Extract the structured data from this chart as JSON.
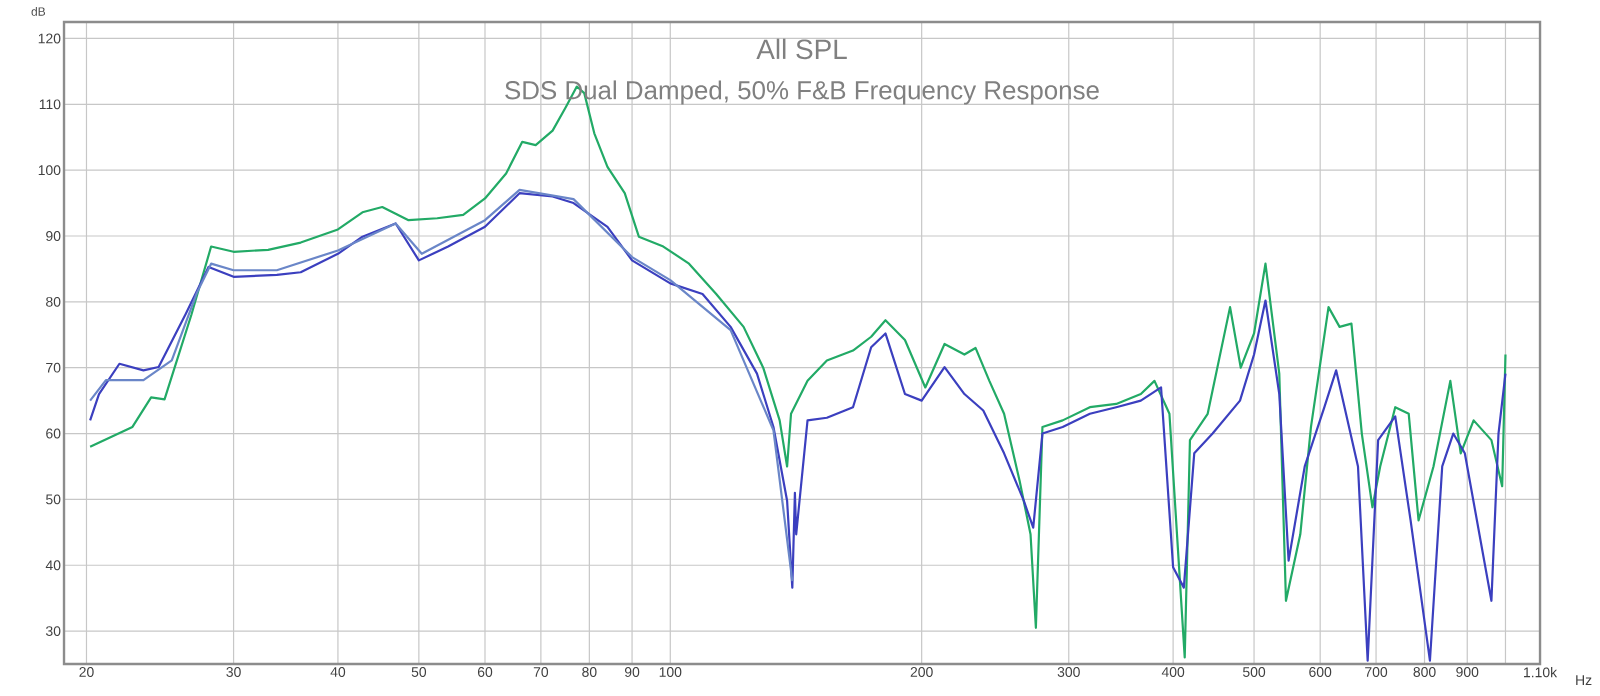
{
  "chart_data": {
    "type": "line",
    "title": "All SPL",
    "subtitle": "SDS Dual Damped, 50% F&B Frequency Response",
    "xlabel": "Hz",
    "ylabel": "dB",
    "log": "x",
    "grid": true,
    "xlim": [
      18.8,
      1100
    ],
    "ylim": [
      25,
      122.5
    ],
    "xticks": [
      20,
      30,
      40,
      50,
      60,
      70,
      80,
      90,
      100,
      200,
      300,
      400,
      500,
      600,
      700,
      800,
      900,
      {
        "value": 1000,
        "label": null
      },
      {
        "value": 1100,
        "label": "1.10k"
      }
    ],
    "yticks": [
      30,
      40,
      50,
      60,
      70,
      80,
      90,
      100,
      110,
      120
    ],
    "series": [
      {
        "color": "#22aa66",
        "x": [
          20.2,
          22.7,
          23.9,
          24.8,
          26.7,
          28.2,
          30,
          33,
          36.1,
          40,
          42.8,
          45.2,
          48.6,
          52.6,
          56.5,
          60,
          63.6,
          66.5,
          69,
          72.3,
          75,
          77.3,
          78.9,
          81.1,
          84.1,
          88.2,
          91.7,
          98.1,
          105.3,
          113.5,
          122.4,
          129.2,
          135.2,
          138,
          139.5,
          146,
          154,
          165.5,
          174,
          181,
          191,
          202,
          213,
          225,
          232,
          241,
          251,
          262,
          270,
          274,
          279,
          295,
          318,
          342,
          366,
          380,
          396,
          413,
          419,
          440,
          468,
          482,
          500,
          516,
          536,
          546,
          568,
          585,
          614,
          633,
          654,
          673,
          693,
          708,
          738,
          766,
          787,
          820,
          859,
          884,
          916,
          962,
          991,
          1000
        ],
        "values": [
          58,
          61,
          65.5,
          65.2,
          78,
          88.4,
          87.6,
          87.9,
          89,
          91,
          93.6,
          94.4,
          92.4,
          92.7,
          93.2,
          95.7,
          99.5,
          104.3,
          103.8,
          106,
          109.6,
          112.7,
          111.7,
          105.6,
          100.5,
          96.5,
          89.9,
          88.4,
          85.8,
          81.2,
          76.2,
          70,
          62,
          55,
          63,
          68,
          71.1,
          72.6,
          74.7,
          77.2,
          74.2,
          67,
          73.6,
          72,
          73,
          68,
          63,
          52.8,
          44.7,
          30.5,
          61,
          62,
          64,
          64.5,
          66,
          68,
          63,
          26,
          59,
          63,
          79.2,
          70,
          75.2,
          85.8,
          69.1,
          34.6,
          44.7,
          61,
          79.2,
          76.2,
          76.7,
          60,
          48.8,
          55,
          64,
          63,
          46.8,
          55,
          68,
          57,
          62,
          59,
          52,
          72
        ]
      },
      {
        "color": "#3b3fbf",
        "x": [
          20.2,
          20.7,
          21.9,
          23.4,
          24.4,
          26.3,
          28,
          30,
          33.8,
          36.1,
          40,
          42.8,
          46.9,
          50,
          54.2,
          60,
          66,
          72.3,
          76.6,
          84.1,
          90,
          100,
          109.3,
          118.1,
          127,
          132.9,
          138,
          140,
          141,
          141.5,
          146,
          154,
          165.5,
          174,
          181,
          191,
          200,
          213,
          225,
          237,
          251,
          265,
          272,
          279,
          295,
          318,
          342,
          366,
          387,
          400,
          412,
          424,
          446,
          481,
          500,
          516,
          536,
          550,
          575,
          607,
          627,
          666,
          684,
          704,
          738,
          770,
          812,
          840,
          866,
          894,
          962,
          981,
          1000
        ],
        "values": [
          62,
          66,
          70.6,
          69.6,
          70.1,
          78.2,
          85.3,
          83.8,
          84.1,
          84.5,
          87.3,
          89.9,
          91.9,
          86.3,
          88.4,
          91.4,
          96.5,
          96,
          95,
          91.4,
          86.3,
          82.8,
          81.2,
          76.2,
          69.1,
          61,
          49.8,
          36.6,
          51,
          44.7,
          62,
          62.4,
          64,
          73.1,
          75.2,
          66,
          65,
          70.1,
          66,
          63.5,
          57,
          49.8,
          45.7,
          60,
          61,
          63,
          64,
          65,
          67,
          39.7,
          36.6,
          57,
          60,
          65,
          72,
          80.2,
          66,
          40.7,
          55,
          64,
          69.6,
          55,
          25.5,
          59,
          62.6,
          46.8,
          25.5,
          55,
          60,
          57,
          34.6,
          60,
          69.1
        ]
      },
      {
        "color": "#6a86c8",
        "x": [
          20.2,
          21.1,
          23.4,
          25.3,
          27.1,
          28.2,
          30,
          33.8,
          40,
          46.9,
          50.4,
          60,
          66,
          76.6,
          90,
          100,
          118.1,
          132.9,
          140
        ],
        "values": [
          65,
          68.1,
          68.1,
          71.1,
          81.3,
          85.8,
          84.8,
          84.8,
          87.8,
          91.9,
          87.3,
          92.4,
          97,
          95.6,
          86.8,
          83.3,
          75.7,
          60.5,
          37.6
        ]
      }
    ]
  }
}
